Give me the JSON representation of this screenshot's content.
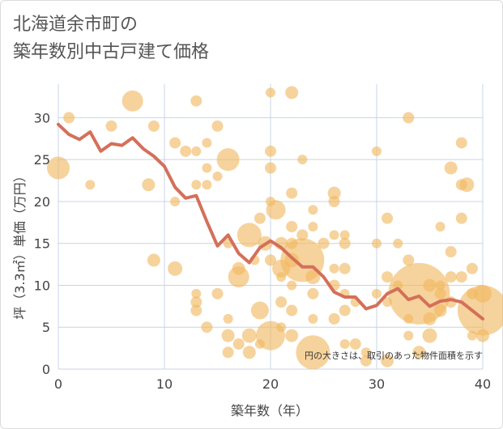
{
  "title_lines": [
    "北海道余市町の",
    "築年数別中古戸建て価格"
  ],
  "chart_data": {
    "type": "scatter",
    "xlabel": "築年数（年）",
    "ylabel": "坪（3.3㎡）単価（万円）",
    "xlim": [
      0,
      40
    ],
    "ylim": [
      0,
      34
    ],
    "xticks": [
      0,
      10,
      20,
      30,
      40
    ],
    "yticks": [
      0,
      5,
      10,
      15,
      20,
      25,
      30
    ],
    "grid": true,
    "note": "円の大きさは、取引のあった物件面積を示す",
    "colors": {
      "bubble": "#f0b860",
      "line": "#d4705a",
      "grid": "#c8d4e4"
    },
    "series": [
      {
        "kind": "bubbles",
        "points": [
          [
            0,
            24,
            14
          ],
          [
            1,
            30,
            7
          ],
          [
            3,
            22,
            6
          ],
          [
            5,
            29,
            7
          ],
          [
            7,
            32,
            13
          ],
          [
            9,
            29,
            7
          ],
          [
            8.5,
            22,
            8
          ],
          [
            9,
            13,
            8
          ],
          [
            11,
            27,
            7
          ],
          [
            11,
            20,
            6
          ],
          [
            11,
            12,
            9
          ],
          [
            12,
            26,
            7
          ],
          [
            13,
            32,
            7
          ],
          [
            13,
            26,
            6
          ],
          [
            13,
            22,
            6
          ],
          [
            13,
            9,
            6
          ],
          [
            13,
            8,
            7
          ],
          [
            13,
            7,
            7
          ],
          [
            14,
            27,
            6
          ],
          [
            14,
            24,
            6
          ],
          [
            14,
            22,
            6
          ],
          [
            14,
            5,
            7
          ],
          [
            15,
            29,
            7
          ],
          [
            15,
            23,
            6
          ],
          [
            15,
            9,
            7
          ],
          [
            16,
            25,
            14
          ],
          [
            16,
            15,
            6
          ],
          [
            16,
            6,
            6
          ],
          [
            16,
            4,
            8
          ],
          [
            16,
            2,
            7
          ],
          [
            17,
            12,
            8
          ],
          [
            17,
            11,
            13
          ],
          [
            17,
            3,
            7
          ],
          [
            18,
            16,
            15
          ],
          [
            18,
            4,
            9
          ],
          [
            18,
            2,
            8
          ],
          [
            18.5,
            13,
            6
          ],
          [
            19,
            18,
            7
          ],
          [
            19,
            7,
            11
          ],
          [
            19,
            3,
            6
          ],
          [
            19.5,
            15,
            9
          ],
          [
            20,
            33,
            6
          ],
          [
            20,
            26,
            7
          ],
          [
            20,
            24,
            7
          ],
          [
            20,
            20,
            6
          ],
          [
            20,
            13,
            7
          ],
          [
            20,
            4,
            18
          ],
          [
            20.5,
            19,
            12
          ],
          [
            21,
            15,
            8
          ],
          [
            21,
            12,
            11
          ],
          [
            21,
            5,
            6
          ],
          [
            21,
            8,
            7
          ],
          [
            21,
            11,
            6
          ],
          [
            22,
            33,
            8
          ],
          [
            22,
            21,
            7
          ],
          [
            22,
            17,
            7
          ],
          [
            22,
            15,
            7
          ],
          [
            22,
            13,
            9
          ],
          [
            22,
            10,
            6
          ],
          [
            22,
            7,
            7
          ],
          [
            22,
            4,
            8
          ],
          [
            23,
            25,
            6
          ],
          [
            23,
            16,
            7
          ],
          [
            23,
            13,
            27
          ],
          [
            24,
            11,
            9
          ],
          [
            24,
            2,
            21
          ],
          [
            24,
            19,
            6
          ],
          [
            24,
            17,
            6
          ],
          [
            24,
            6,
            6
          ],
          [
            24,
            9,
            7
          ],
          [
            25,
            15,
            7
          ],
          [
            26,
            21,
            8
          ],
          [
            26,
            20,
            7
          ],
          [
            26,
            16,
            6
          ],
          [
            26,
            10,
            7
          ],
          [
            26,
            12,
            6
          ],
          [
            26,
            6,
            7
          ],
          [
            27,
            16,
            6
          ],
          [
            27,
            15,
            7
          ],
          [
            27,
            12,
            7
          ],
          [
            27,
            9,
            6
          ],
          [
            27,
            7,
            7
          ],
          [
            27,
            3,
            6
          ],
          [
            28,
            8,
            6
          ],
          [
            28,
            3,
            7
          ],
          [
            29,
            2,
            6
          ],
          [
            29,
            1,
            7
          ],
          [
            30,
            26,
            6
          ],
          [
            30,
            15,
            6
          ],
          [
            30,
            9,
            6
          ],
          [
            31,
            18,
            7
          ],
          [
            31,
            11,
            7
          ],
          [
            31,
            8,
            6
          ],
          [
            31,
            1,
            8
          ],
          [
            32,
            15,
            6
          ],
          [
            32,
            10,
            6
          ],
          [
            33,
            30,
            7
          ],
          [
            33,
            13,
            7
          ],
          [
            33,
            6,
            6
          ],
          [
            33,
            4,
            6
          ],
          [
            34,
            9,
            38
          ],
          [
            34,
            2,
            8
          ],
          [
            35,
            10,
            8
          ],
          [
            35,
            6,
            8
          ],
          [
            35,
            4,
            9
          ],
          [
            36,
            17,
            6
          ],
          [
            36,
            10,
            6
          ],
          [
            36,
            9,
            7
          ],
          [
            36,
            7,
            8
          ],
          [
            37,
            24,
            8
          ],
          [
            37,
            14,
            7
          ],
          [
            37,
            11,
            7
          ],
          [
            37,
            8,
            7
          ],
          [
            38,
            27,
            7
          ],
          [
            38,
            22,
            7
          ],
          [
            38,
            18,
            7
          ],
          [
            38,
            11,
            7
          ],
          [
            38.5,
            22,
            9
          ],
          [
            39,
            12,
            7
          ],
          [
            39,
            9,
            7
          ],
          [
            39,
            4,
            6
          ],
          [
            40,
            9,
            11
          ],
          [
            40,
            7,
            31
          ],
          [
            40,
            4,
            8
          ]
        ]
      },
      {
        "kind": "line",
        "x": [
          0,
          1,
          2,
          3,
          4,
          5,
          6,
          7,
          8,
          9,
          10,
          11,
          12,
          13,
          14,
          15,
          16,
          17,
          18,
          19,
          20,
          21,
          22,
          23,
          24,
          25,
          26,
          27,
          28,
          29,
          30,
          31,
          32,
          33,
          34,
          35,
          36,
          37,
          38,
          39,
          40
        ],
        "y": [
          29.2,
          28,
          27.4,
          28.3,
          26,
          26.9,
          26.7,
          27.6,
          26.3,
          25.4,
          24.2,
          21.7,
          20.4,
          20.7,
          17.6,
          14.7,
          16,
          13.8,
          12.7,
          14.5,
          15.3,
          14.5,
          13.3,
          12.2,
          12.2,
          11,
          9.2,
          8.6,
          8.6,
          7.2,
          7.6,
          9,
          9.6,
          8.3,
          8.7,
          7.5,
          8.1,
          8.3,
          8,
          7,
          6
        ]
      }
    ]
  }
}
